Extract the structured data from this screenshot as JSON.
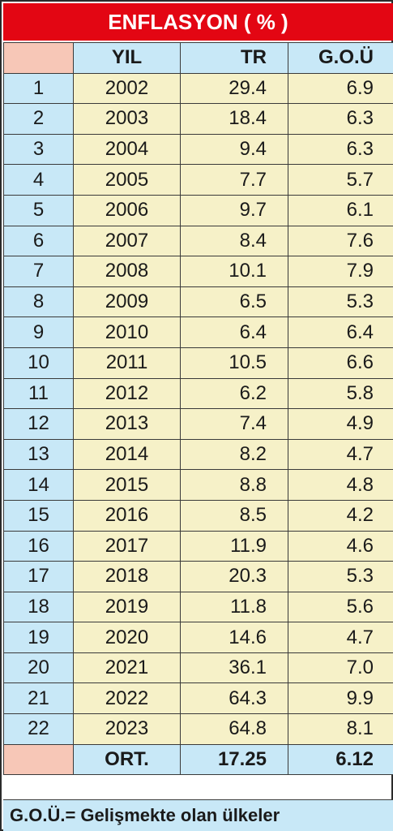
{
  "title": "ENFLASYON ( % )",
  "headers": {
    "year": "YIL",
    "tr": "TR",
    "gou": "G.O.Ü"
  },
  "rows": [
    {
      "idx": "1",
      "year": "2002",
      "tr": "29.4",
      "gou": "6.9"
    },
    {
      "idx": "2",
      "year": "2003",
      "tr": "18.4",
      "gou": "6.3"
    },
    {
      "idx": "3",
      "year": "2004",
      "tr": "9.4",
      "gou": "6.3"
    },
    {
      "idx": "4",
      "year": "2005",
      "tr": "7.7",
      "gou": "5.7"
    },
    {
      "idx": "5",
      "year": "2006",
      "tr": "9.7",
      "gou": "6.1"
    },
    {
      "idx": "6",
      "year": "2007",
      "tr": "8.4",
      "gou": "7.6"
    },
    {
      "idx": "7",
      "year": "2008",
      "tr": "10.1",
      "gou": "7.9"
    },
    {
      "idx": "8",
      "year": "2009",
      "tr": "6.5",
      "gou": "5.3"
    },
    {
      "idx": "9",
      "year": "2010",
      "tr": "6.4",
      "gou": "6.4"
    },
    {
      "idx": "10",
      "year": "2011",
      "tr": "10.5",
      "gou": "6.6"
    },
    {
      "idx": "11",
      "year": "2012",
      "tr": "6.2",
      "gou": "5.8"
    },
    {
      "idx": "12",
      "year": "2013",
      "tr": "7.4",
      "gou": "4.9"
    },
    {
      "idx": "13",
      "year": "2014",
      "tr": "8.2",
      "gou": "4.7"
    },
    {
      "idx": "14",
      "year": "2015",
      "tr": "8.8",
      "gou": "4.8"
    },
    {
      "idx": "15",
      "year": "2016",
      "tr": "8.5",
      "gou": "4.2"
    },
    {
      "idx": "16",
      "year": "2017",
      "tr": "11.9",
      "gou": "4.6"
    },
    {
      "idx": "17",
      "year": "2018",
      "tr": "20.3",
      "gou": "5.3"
    },
    {
      "idx": "18",
      "year": "2019",
      "tr": "11.8",
      "gou": "5.6"
    },
    {
      "idx": "19",
      "year": "2020",
      "tr": "14.6",
      "gou": "4.7"
    },
    {
      "idx": "20",
      "year": "2021",
      "tr": "36.1",
      "gou": "7.0"
    },
    {
      "idx": "21",
      "year": "2022",
      "tr": "64.3",
      "gou": "9.9"
    },
    {
      "idx": "22",
      "year": "2023",
      "tr": "64.8",
      "gou": "8.1"
    }
  ],
  "average": {
    "label": "ORT.",
    "tr": "17.25",
    "gou": "6.12"
  },
  "footer": "G.O.Ü.= Gelişmekte olan ülkeler",
  "colors": {
    "title_bg": "#e30613",
    "header_bg": "#c8e8f7",
    "corner_bg": "#f7c7b7",
    "cell_bg": "#f6f1c8"
  }
}
